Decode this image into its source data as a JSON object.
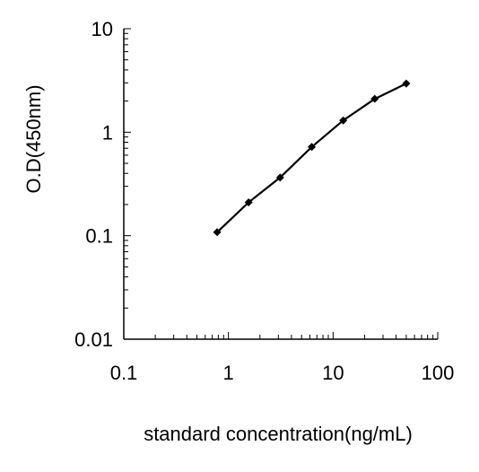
{
  "chart_data": {
    "type": "line",
    "title": "",
    "xlabel": "standard concentration(ng/mL)",
    "ylabel": "O.D(450nm)",
    "x_scale": "log",
    "y_scale": "log",
    "xlim": [
      0.1,
      100
    ],
    "ylim": [
      0.01,
      10
    ],
    "x_tick_labels": [
      "0.1",
      "1",
      "10",
      "100"
    ],
    "y_tick_labels": [
      "0.01",
      "0.1",
      "1",
      "10"
    ],
    "grid": false,
    "legend": "none",
    "series": [
      {
        "marker": "diamond",
        "color": "#000000",
        "x": [
          0.78,
          1.56,
          3.12,
          6.25,
          12.5,
          25,
          50
        ],
        "y": [
          0.108,
          0.21,
          0.365,
          0.72,
          1.3,
          2.1,
          2.95
        ]
      }
    ]
  }
}
